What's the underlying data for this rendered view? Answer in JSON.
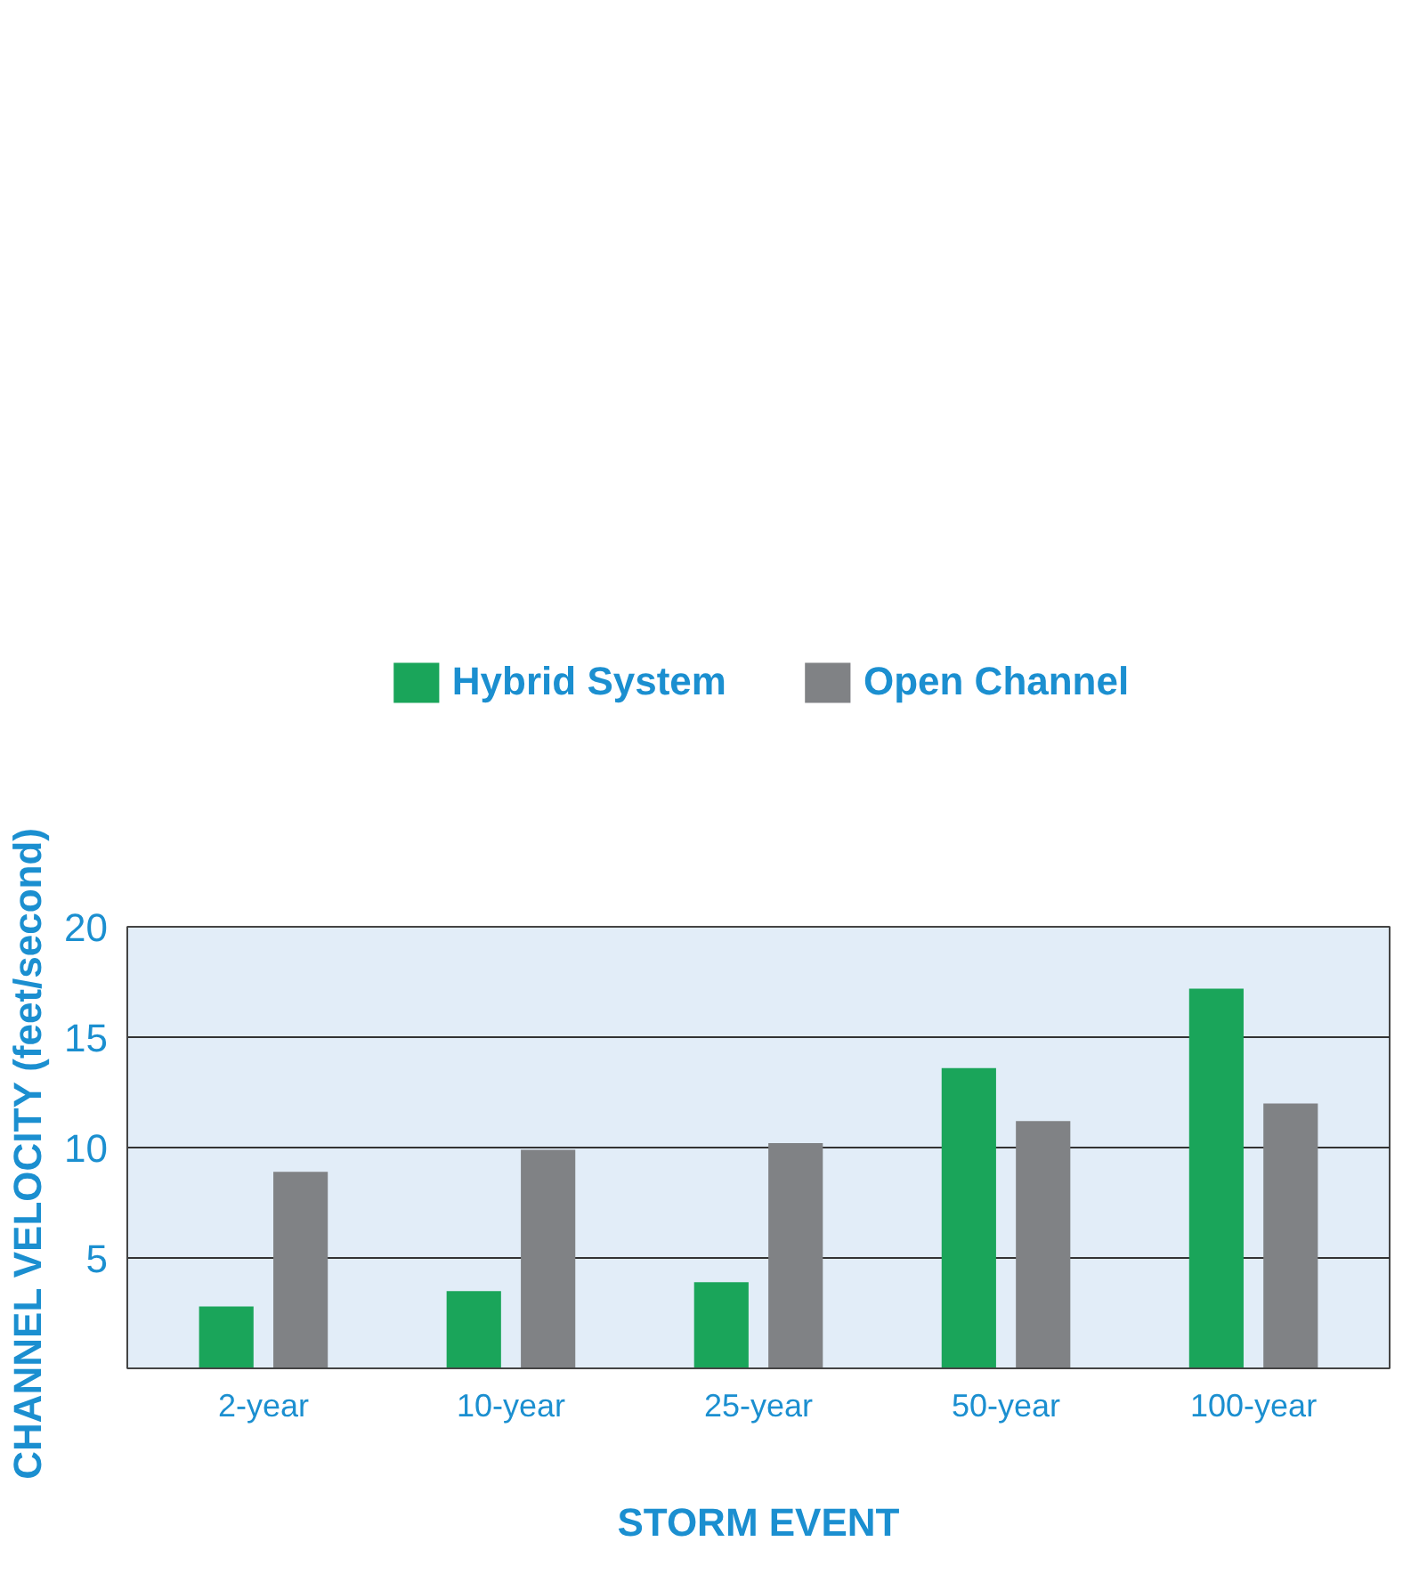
{
  "chart_data": {
    "type": "bar",
    "xlabel": "STORM EVENT",
    "ylabel": "CHANNEL VELOCITY  (feet/second)",
    "categories": [
      "2-year",
      "10-year",
      "25-year",
      "50-year",
      "100-year"
    ],
    "series": [
      {
        "name": "Hybrid System",
        "color": "#1aa55a",
        "values": [
          2.8,
          3.5,
          3.9,
          13.6,
          17.2
        ]
      },
      {
        "name": "Open Channel",
        "color": "#808285",
        "values": [
          8.9,
          9.9,
          10.2,
          11.2,
          12.0
        ]
      }
    ],
    "ylim": [
      0,
      20
    ],
    "yticks": [
      5,
      10,
      15,
      20
    ],
    "grid": "y",
    "legend": "top"
  }
}
